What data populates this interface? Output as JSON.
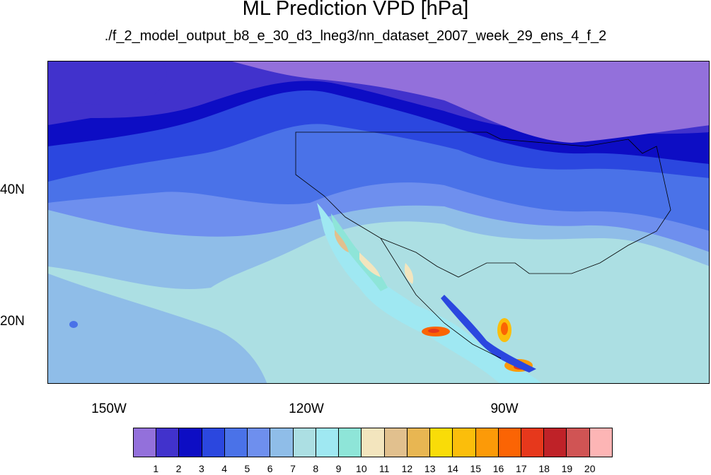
{
  "title": "ML Prediction VPD [hPa]",
  "subtitle": "./f_2_model_output_b8_e_30_d3_lneg3/nn_dataset_2007_week_29_ens_4_f_2",
  "lat_labels": [
    "40N",
    "20N"
  ],
  "lon_labels": [
    "150W",
    "120W",
    "90W"
  ],
  "colorbar": {
    "colors": [
      "#9370db",
      "#4132cc",
      "#0d0dc4",
      "#2b47df",
      "#4a72e8",
      "#6e8fee",
      "#8fbde8",
      "#acdfe3",
      "#9fe8f2",
      "#8ee5d8",
      "#f3e5be",
      "#e1c08e",
      "#e8b652",
      "#f9dc08",
      "#fbbe0b",
      "#fc9a08",
      "#fb6404",
      "#e6381c",
      "#bf2228",
      "#d05454",
      "#fdb5b5"
    ],
    "labels": [
      "1",
      "2",
      "3",
      "4",
      "5",
      "6",
      "7",
      "8",
      "9",
      "10",
      "11",
      "12",
      "13",
      "14",
      "15",
      "16",
      "17",
      "18",
      "19",
      "20"
    ]
  }
}
